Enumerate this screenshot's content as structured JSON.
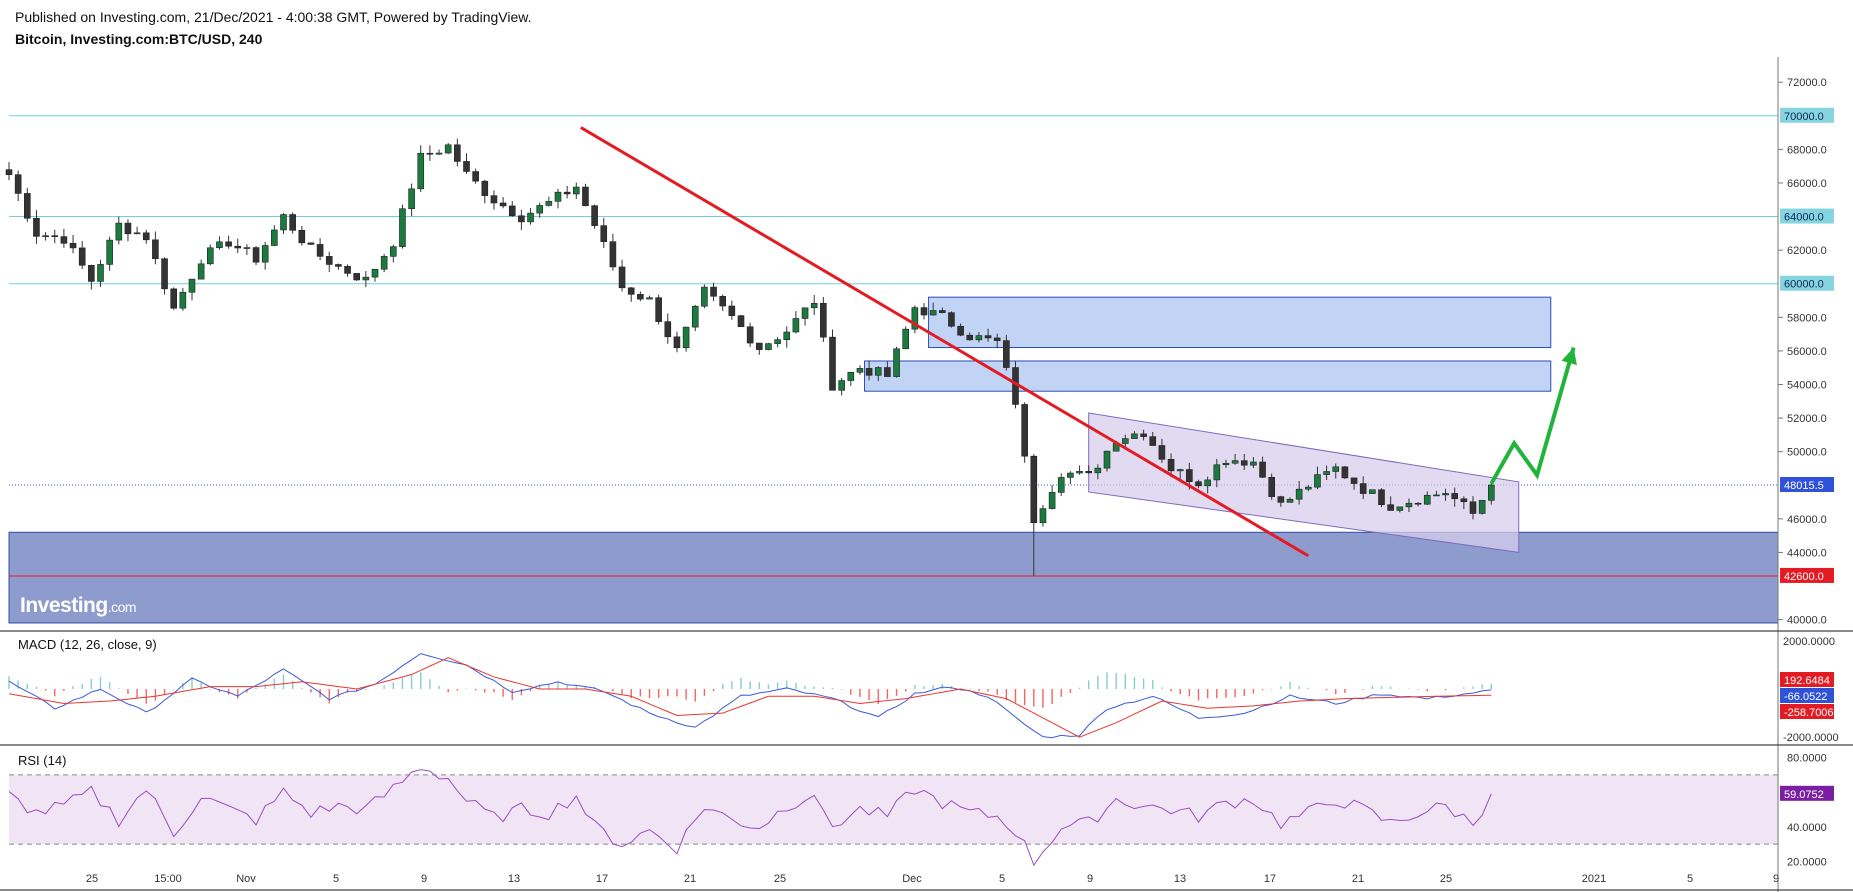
{
  "header": {
    "published": "Published on Investing.com, 21/Dec/2021 - 4:00:38 GMT, Powered by TradingView.",
    "symbol": "Bitcoin, Investing.com:BTC/USD, 240"
  },
  "logo": {
    "text": "Investing",
    "suffix": ".com"
  },
  "colors": {
    "up": "#26a69a",
    "down": "#ef5350",
    "candle_up": "#1b7a3e",
    "candle_down": "#333333",
    "hline": "#6fd0dc",
    "trend": "#e31b23",
    "zone": "#b6cdf5",
    "zone_border": "#2c4fa8",
    "support": "#8e9ccd",
    "channel": "#d7cdeb",
    "arrow": "#22b33a",
    "macd": "#3b5bdb",
    "signal": "#e8372d",
    "rsi": "#9b4fc2",
    "rsi_band": "#f1e4f4"
  },
  "chart_data": [
    {
      "type": "candlestick",
      "name": "BTC/USD price",
      "x_ticks": [
        "25",
        "15:00",
        "Nov",
        "5",
        "9",
        "13",
        "17",
        "21",
        "25",
        "Dec",
        "5",
        "9",
        "13",
        "17",
        "21",
        "25",
        "2021",
        "5",
        "9"
      ],
      "ylim": [
        39500,
        73500
      ],
      "y_ticks": [
        "72000.0",
        "70000.0",
        "68000.0",
        "66000.0",
        "64000.0",
        "62000.0",
        "60000.0",
        "58000.0",
        "56000.0",
        "54000.0",
        "52000.0",
        "50000.0",
        "48015.5",
        "46000.0",
        "44000.0",
        "42600.0",
        "40000.0"
      ],
      "horizontal_levels": [
        {
          "value": 70000,
          "label": "70000.0",
          "style": "line"
        },
        {
          "value": 64000,
          "label": "64000.0",
          "style": "line"
        },
        {
          "value": 60000,
          "label": "60000.0",
          "style": "line"
        },
        {
          "value": 48015.5,
          "label": "48015.5",
          "style": "last-price"
        },
        {
          "value": 42600,
          "label": "42600.0",
          "style": "support"
        }
      ],
      "anchors": [
        [
          0,
          66500
        ],
        [
          3,
          63000
        ],
        [
          6,
          62700
        ],
        [
          9,
          60200
        ],
        [
          12,
          63500
        ],
        [
          15,
          62800
        ],
        [
          18,
          58500
        ],
        [
          21,
          61500
        ],
        [
          24,
          62500
        ],
        [
          27,
          61500
        ],
        [
          30,
          64000
        ],
        [
          33,
          62000
        ],
        [
          36,
          61000
        ],
        [
          39,
          60200
        ],
        [
          42,
          62500
        ],
        [
          45,
          67500
        ],
        [
          48,
          68200
        ],
        [
          50,
          66500
        ],
        [
          53,
          65000
        ],
        [
          56,
          64000
        ],
        [
          59,
          64800
        ],
        [
          62,
          65800
        ],
        [
          64,
          63500
        ],
        [
          67,
          59800
        ],
        [
          70,
          59000
        ],
        [
          73,
          56000
        ],
        [
          76,
          59500
        ],
        [
          79,
          58000
        ],
        [
          82,
          56200
        ],
        [
          85,
          57200
        ],
        [
          88,
          59000
        ],
        [
          90,
          54000
        ],
        [
          93,
          55000
        ],
        [
          96,
          54500
        ],
        [
          99,
          58600
        ],
        [
          102,
          58000
        ],
        [
          105,
          56900
        ],
        [
          108,
          56500
        ],
        [
          110,
          53000
        ],
        [
          112,
          46000
        ],
        [
          115,
          48800
        ],
        [
          118,
          48500
        ],
        [
          121,
          50800
        ],
        [
          124,
          51200
        ],
        [
          127,
          49000
        ],
        [
          130,
          48200
        ],
        [
          133,
          49600
        ],
        [
          136,
          49400
        ],
        [
          139,
          46800
        ],
        [
          142,
          48000
        ],
        [
          145,
          49000
        ],
        [
          148,
          47800
        ],
        [
          151,
          46800
        ],
        [
          154,
          47200
        ],
        [
          157,
          47600
        ],
        [
          160,
          46300
        ],
        [
          162,
          48015
        ]
      ],
      "trendline": [
        [
          62.5,
          69300
        ],
        [
          142,
          43800
        ]
      ],
      "resistance_zones": [
        [
          56200,
          59200
        ],
        [
          53600,
          55400
        ]
      ],
      "support_zone": [
        39800,
        45200
      ],
      "channel": [
        [
          [
            118,
            52300
          ],
          [
            165,
            48200
          ]
        ],
        [
          [
            118,
            47600
          ],
          [
            165,
            44000
          ]
        ]
      ],
      "projection_arrow": [
        [
          162,
          48100
        ],
        [
          164.5,
          50500
        ],
        [
          167,
          48600
        ],
        [
          171,
          56200
        ]
      ]
    },
    {
      "type": "line",
      "name": "MACD (12, 26, close, 9)",
      "title": "MACD (12, 26, close, 9)",
      "ylim": [
        -2200,
        2200
      ],
      "y_ticks": [
        "2000.0000",
        "192.6484",
        "-66.0522",
        "-258.7006",
        "-2000.0000"
      ],
      "last_values": {
        "histogram": 192.6484,
        "macd": -66.0522,
        "signal": -258.7006
      },
      "macd_anchors": [
        [
          0,
          300
        ],
        [
          5,
          -800
        ],
        [
          10,
          0
        ],
        [
          15,
          -1000
        ],
        [
          20,
          400
        ],
        [
          25,
          -300
        ],
        [
          30,
          800
        ],
        [
          35,
          -400
        ],
        [
          40,
          200
        ],
        [
          45,
          1500
        ],
        [
          50,
          1000
        ],
        [
          55,
          -100
        ],
        [
          60,
          300
        ],
        [
          65,
          -100
        ],
        [
          70,
          -1000
        ],
        [
          75,
          -1600
        ],
        [
          80,
          -300
        ],
        [
          85,
          0
        ],
        [
          90,
          -400
        ],
        [
          95,
          -1200
        ],
        [
          99,
          -200
        ],
        [
          103,
          100
        ],
        [
          107,
          -300
        ],
        [
          110,
          -1200
        ],
        [
          113,
          -2000
        ],
        [
          117,
          -1900
        ],
        [
          120,
          -800
        ],
        [
          125,
          -300
        ],
        [
          130,
          -1200
        ],
        [
          135,
          -1000
        ],
        [
          140,
          -300
        ],
        [
          145,
          -600
        ],
        [
          150,
          -200
        ],
        [
          155,
          -400
        ],
        [
          162,
          -66
        ]
      ],
      "signal_anchors": [
        [
          0,
          -200
        ],
        [
          6,
          -600
        ],
        [
          11,
          -500
        ],
        [
          16,
          -300
        ],
        [
          22,
          100
        ],
        [
          27,
          100
        ],
        [
          32,
          300
        ],
        [
          38,
          0
        ],
        [
          44,
          600
        ],
        [
          48,
          1300
        ],
        [
          53,
          500
        ],
        [
          58,
          0
        ],
        [
          63,
          0
        ],
        [
          68,
          -300
        ],
        [
          73,
          -1100
        ],
        [
          78,
          -1000
        ],
        [
          83,
          -300
        ],
        [
          88,
          -300
        ],
        [
          93,
          -600
        ],
        [
          98,
          -400
        ],
        [
          104,
          0
        ],
        [
          109,
          -400
        ],
        [
          113,
          -1200
        ],
        [
          117,
          -2000
        ],
        [
          121,
          -1400
        ],
        [
          126,
          -500
        ],
        [
          131,
          -800
        ],
        [
          136,
          -700
        ],
        [
          141,
          -500
        ],
        [
          146,
          -400
        ],
        [
          151,
          -350
        ],
        [
          156,
          -300
        ],
        [
          162,
          -259
        ]
      ]
    },
    {
      "type": "line",
      "name": "RSI (14)",
      "title": "RSI (14)",
      "ylim": [
        15,
        85
      ],
      "y_ticks": [
        "80.0000",
        "59.0752",
        "40.0000",
        "20.0000"
      ],
      "bands": [
        30,
        70
      ],
      "last_value": 59.0752,
      "anchors": [
        [
          0,
          58
        ],
        [
          3,
          48
        ],
        [
          6,
          52
        ],
        [
          9,
          60
        ],
        [
          12,
          44
        ],
        [
          15,
          62
        ],
        [
          18,
          36
        ],
        [
          21,
          58
        ],
        [
          24,
          50
        ],
        [
          27,
          44
        ],
        [
          30,
          60
        ],
        [
          33,
          48
        ],
        [
          36,
          52
        ],
        [
          39,
          50
        ],
        [
          42,
          62
        ],
        [
          45,
          75
        ],
        [
          48,
          68
        ],
        [
          50,
          55
        ],
        [
          53,
          45
        ],
        [
          56,
          50
        ],
        [
          59,
          48
        ],
        [
          62,
          58
        ],
        [
          64,
          40
        ],
        [
          67,
          30
        ],
        [
          70,
          38
        ],
        [
          73,
          28
        ],
        [
          76,
          52
        ],
        [
          79,
          44
        ],
        [
          82,
          40
        ],
        [
          85,
          52
        ],
        [
          88,
          60
        ],
        [
          89.5,
          39
        ],
        [
          93,
          50
        ],
        [
          96,
          46
        ],
        [
          99,
          62
        ],
        [
          102,
          54
        ],
        [
          105,
          48
        ],
        [
          108,
          46
        ],
        [
          110,
          38
        ],
        [
          112,
          20
        ],
        [
          115,
          40
        ],
        [
          118,
          42
        ],
        [
          121,
          56
        ],
        [
          124,
          52
        ],
        [
          127,
          50
        ],
        [
          130,
          46
        ],
        [
          133,
          54
        ],
        [
          136,
          56
        ],
        [
          139,
          42
        ],
        [
          142,
          48
        ],
        [
          145,
          56
        ],
        [
          148,
          50
        ],
        [
          151,
          42
        ],
        [
          154,
          48
        ],
        [
          157,
          52
        ],
        [
          160,
          42
        ],
        [
          162,
          59
        ]
      ]
    }
  ]
}
